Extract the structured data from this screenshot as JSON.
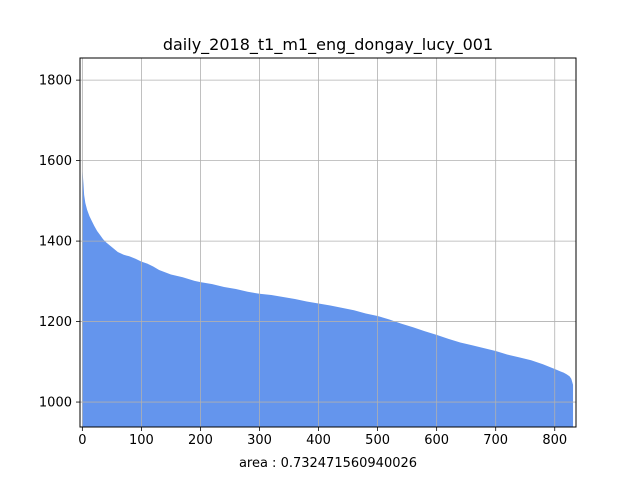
{
  "chart_data": {
    "type": "area",
    "title": "daily_2018_t1_m1_eng_dongay_lucy_001",
    "xlabel": "area : 0.732471560940026",
    "ylabel": "",
    "xlim": [
      -4,
      836
    ],
    "ylim": [
      938,
      1855
    ],
    "baseline": 938,
    "xticks": [
      0,
      100,
      200,
      300,
      400,
      500,
      600,
      700,
      800
    ],
    "yticks": [
      1000,
      1200,
      1400,
      1600,
      1800
    ],
    "grid": true,
    "legend": "none",
    "fill_color": "#6495ED",
    "grid_color": "#b0b0b0",
    "n_points": 832,
    "curve": {
      "x": [
        0,
        1,
        2,
        3,
        5,
        8,
        12,
        16,
        20,
        25,
        30,
        35,
        40,
        50,
        60,
        70,
        80,
        90,
        100,
        110,
        120,
        130,
        150,
        170,
        190,
        200,
        220,
        240,
        260,
        280,
        300,
        320,
        340,
        360,
        380,
        400,
        420,
        440,
        460,
        480,
        500,
        520,
        540,
        560,
        580,
        600,
        620,
        640,
        660,
        680,
        700,
        720,
        740,
        760,
        780,
        800,
        810,
        815,
        820,
        825,
        828,
        831
      ],
      "y": [
        1578,
        1560,
        1540,
        1515,
        1495,
        1478,
        1462,
        1450,
        1438,
        1425,
        1415,
        1405,
        1397,
        1385,
        1373,
        1366,
        1362,
        1356,
        1349,
        1344,
        1337,
        1328,
        1317,
        1310,
        1301,
        1298,
        1293,
        1286,
        1281,
        1274,
        1269,
        1266,
        1261,
        1256,
        1250,
        1245,
        1240,
        1234,
        1228,
        1220,
        1214,
        1205,
        1195,
        1186,
        1176,
        1167,
        1157,
        1148,
        1141,
        1134,
        1127,
        1118,
        1111,
        1104,
        1094,
        1082,
        1076,
        1073,
        1069,
        1064,
        1058,
        1043
      ]
    }
  }
}
